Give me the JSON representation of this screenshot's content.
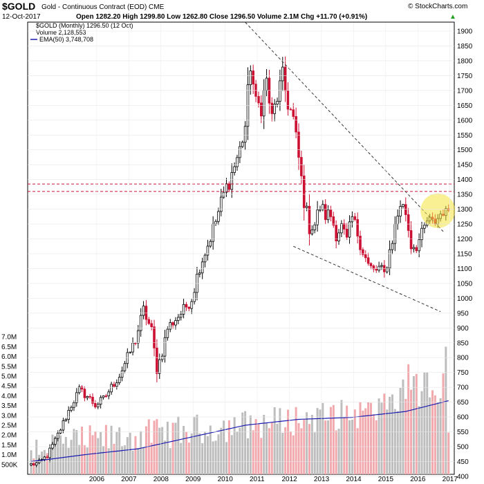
{
  "header": {
    "symbol": "$GOLD",
    "description": "Gold - Continuous Contract (EOD) CME",
    "date": "12-Oct-2017",
    "ohlc": "Open 1282.20 High 1299.80 Low 1262.80 Close 1296.50 Volume 2.1M Chg +11.70 (+0.91%)",
    "trend_arrow": "▲",
    "brand": "© StockCharts.com",
    "legend_price": "$GOLD (Monthly) 1296.50 (12 Oct)",
    "legend_volume": "Volume 2,128,553",
    "legend_ema": "EMA(50) 3,748,708"
  },
  "colors": {
    "up": "#000000",
    "down": "#cc1133",
    "vol_up": "#bdbdbd",
    "vol_down": "#f2a9ae",
    "ema": "#1a1ab0",
    "support_lines": "#cc1133",
    "trend_lines": "#333333",
    "highlight": "#f4e23a"
  },
  "chart_data": {
    "type": "candlestick",
    "title": "$GOLD (Monthly)",
    "period": "Monthly",
    "x_axis": [
      "2006",
      "2007",
      "2008",
      "2009",
      "2010",
      "2011",
      "2012",
      "2013",
      "2014",
      "2015",
      "2016",
      "2017"
    ],
    "y_axis_price": {
      "range": [
        400,
        1925
      ],
      "ticks": [
        400,
        450,
        500,
        550,
        600,
        650,
        700,
        750,
        800,
        850,
        900,
        950,
        1000,
        1050,
        1100,
        1150,
        1200,
        1250,
        1300,
        1350,
        1400,
        1450,
        1500,
        1550,
        1600,
        1650,
        1700,
        1750,
        1800,
        1850,
        1900
      ]
    },
    "y_axis_volume": {
      "range": [
        0,
        7500000
      ],
      "ticks": [
        "500K",
        "1.0M",
        "1.5M",
        "2.0M",
        "2.5M",
        "3.0M",
        "3.5M",
        "4.0M",
        "4.5M",
        "5.0M",
        "5.5M",
        "6.0M",
        "6.5M",
        "7.0M"
      ]
    },
    "price_anchors": [
      [
        0,
        440
      ],
      [
        3,
        445
      ],
      [
        6,
        470
      ],
      [
        9,
        520
      ],
      [
        12,
        580
      ],
      [
        15,
        640
      ],
      [
        18,
        690
      ],
      [
        21,
        670
      ],
      [
        24,
        640
      ],
      [
        27,
        660
      ],
      [
        30,
        700
      ],
      [
        33,
        740
      ],
      [
        36,
        800
      ],
      [
        39,
        860
      ],
      [
        42,
        960
      ],
      [
        45,
        890
      ],
      [
        47,
        760
      ],
      [
        49,
        820
      ],
      [
        51,
        900
      ],
      [
        54,
        930
      ],
      [
        57,
        960
      ],
      [
        60,
        1000
      ],
      [
        63,
        1110
      ],
      [
        66,
        1180
      ],
      [
        69,
        1260
      ],
      [
        72,
        1350
      ],
      [
        75,
        1420
      ],
      [
        78,
        1500
      ],
      [
        80,
        1580
      ],
      [
        82,
        1790
      ],
      [
        84,
        1650
      ],
      [
        86,
        1650
      ],
      [
        88,
        1730
      ],
      [
        90,
        1600
      ],
      [
        92,
        1680
      ],
      [
        94,
        1740
      ],
      [
        96,
        1660
      ],
      [
        98,
        1600
      ],
      [
        100,
        1470
      ],
      [
        102,
        1330
      ],
      [
        104,
        1240
      ],
      [
        106,
        1250
      ],
      [
        108,
        1310
      ],
      [
        110,
        1280
      ],
      [
        112,
        1280
      ],
      [
        114,
        1220
      ],
      [
        116,
        1240
      ],
      [
        118,
        1190
      ],
      [
        120,
        1270
      ],
      [
        122,
        1220
      ],
      [
        124,
        1160
      ],
      [
        126,
        1110
      ],
      [
        128,
        1090
      ],
      [
        130,
        1100
      ],
      [
        132,
        1080
      ],
      [
        134,
        1160
      ],
      [
        136,
        1240
      ],
      [
        138,
        1320
      ],
      [
        140,
        1290
      ],
      [
        142,
        1180
      ],
      [
        144,
        1180
      ],
      [
        146,
        1210
      ],
      [
        148,
        1260
      ],
      [
        150,
        1250
      ],
      [
        152,
        1270
      ],
      [
        154,
        1300
      ],
      [
        155,
        1280
      ],
      [
        156,
        1300
      ]
    ],
    "volume_ema50_anchors": [
      [
        0,
        650000
      ],
      [
        20,
        1000000
      ],
      [
        40,
        1300000
      ],
      [
        60,
        1900000
      ],
      [
        80,
        2500000
      ],
      [
        100,
        2800000
      ],
      [
        120,
        2900000
      ],
      [
        140,
        3200000
      ],
      [
        156,
        3750000
      ]
    ],
    "last_close": 1296.5,
    "last_volume": 2128553,
    "ema50_volume": 3748708,
    "horizontal_support_lines": [
      1360,
      1385
    ],
    "trend_lines": [
      {
        "label": "upper",
        "from": [
          1930,
          "2011-09"
        ],
        "to": [
          1225,
          "2017-11"
        ]
      },
      {
        "label": "lower",
        "from": [
          1175,
          "2013-03"
        ],
        "to": [
          955,
          "2017-10"
        ]
      }
    ],
    "highlight": {
      "center_price": 1295,
      "at": "2017-09"
    }
  }
}
